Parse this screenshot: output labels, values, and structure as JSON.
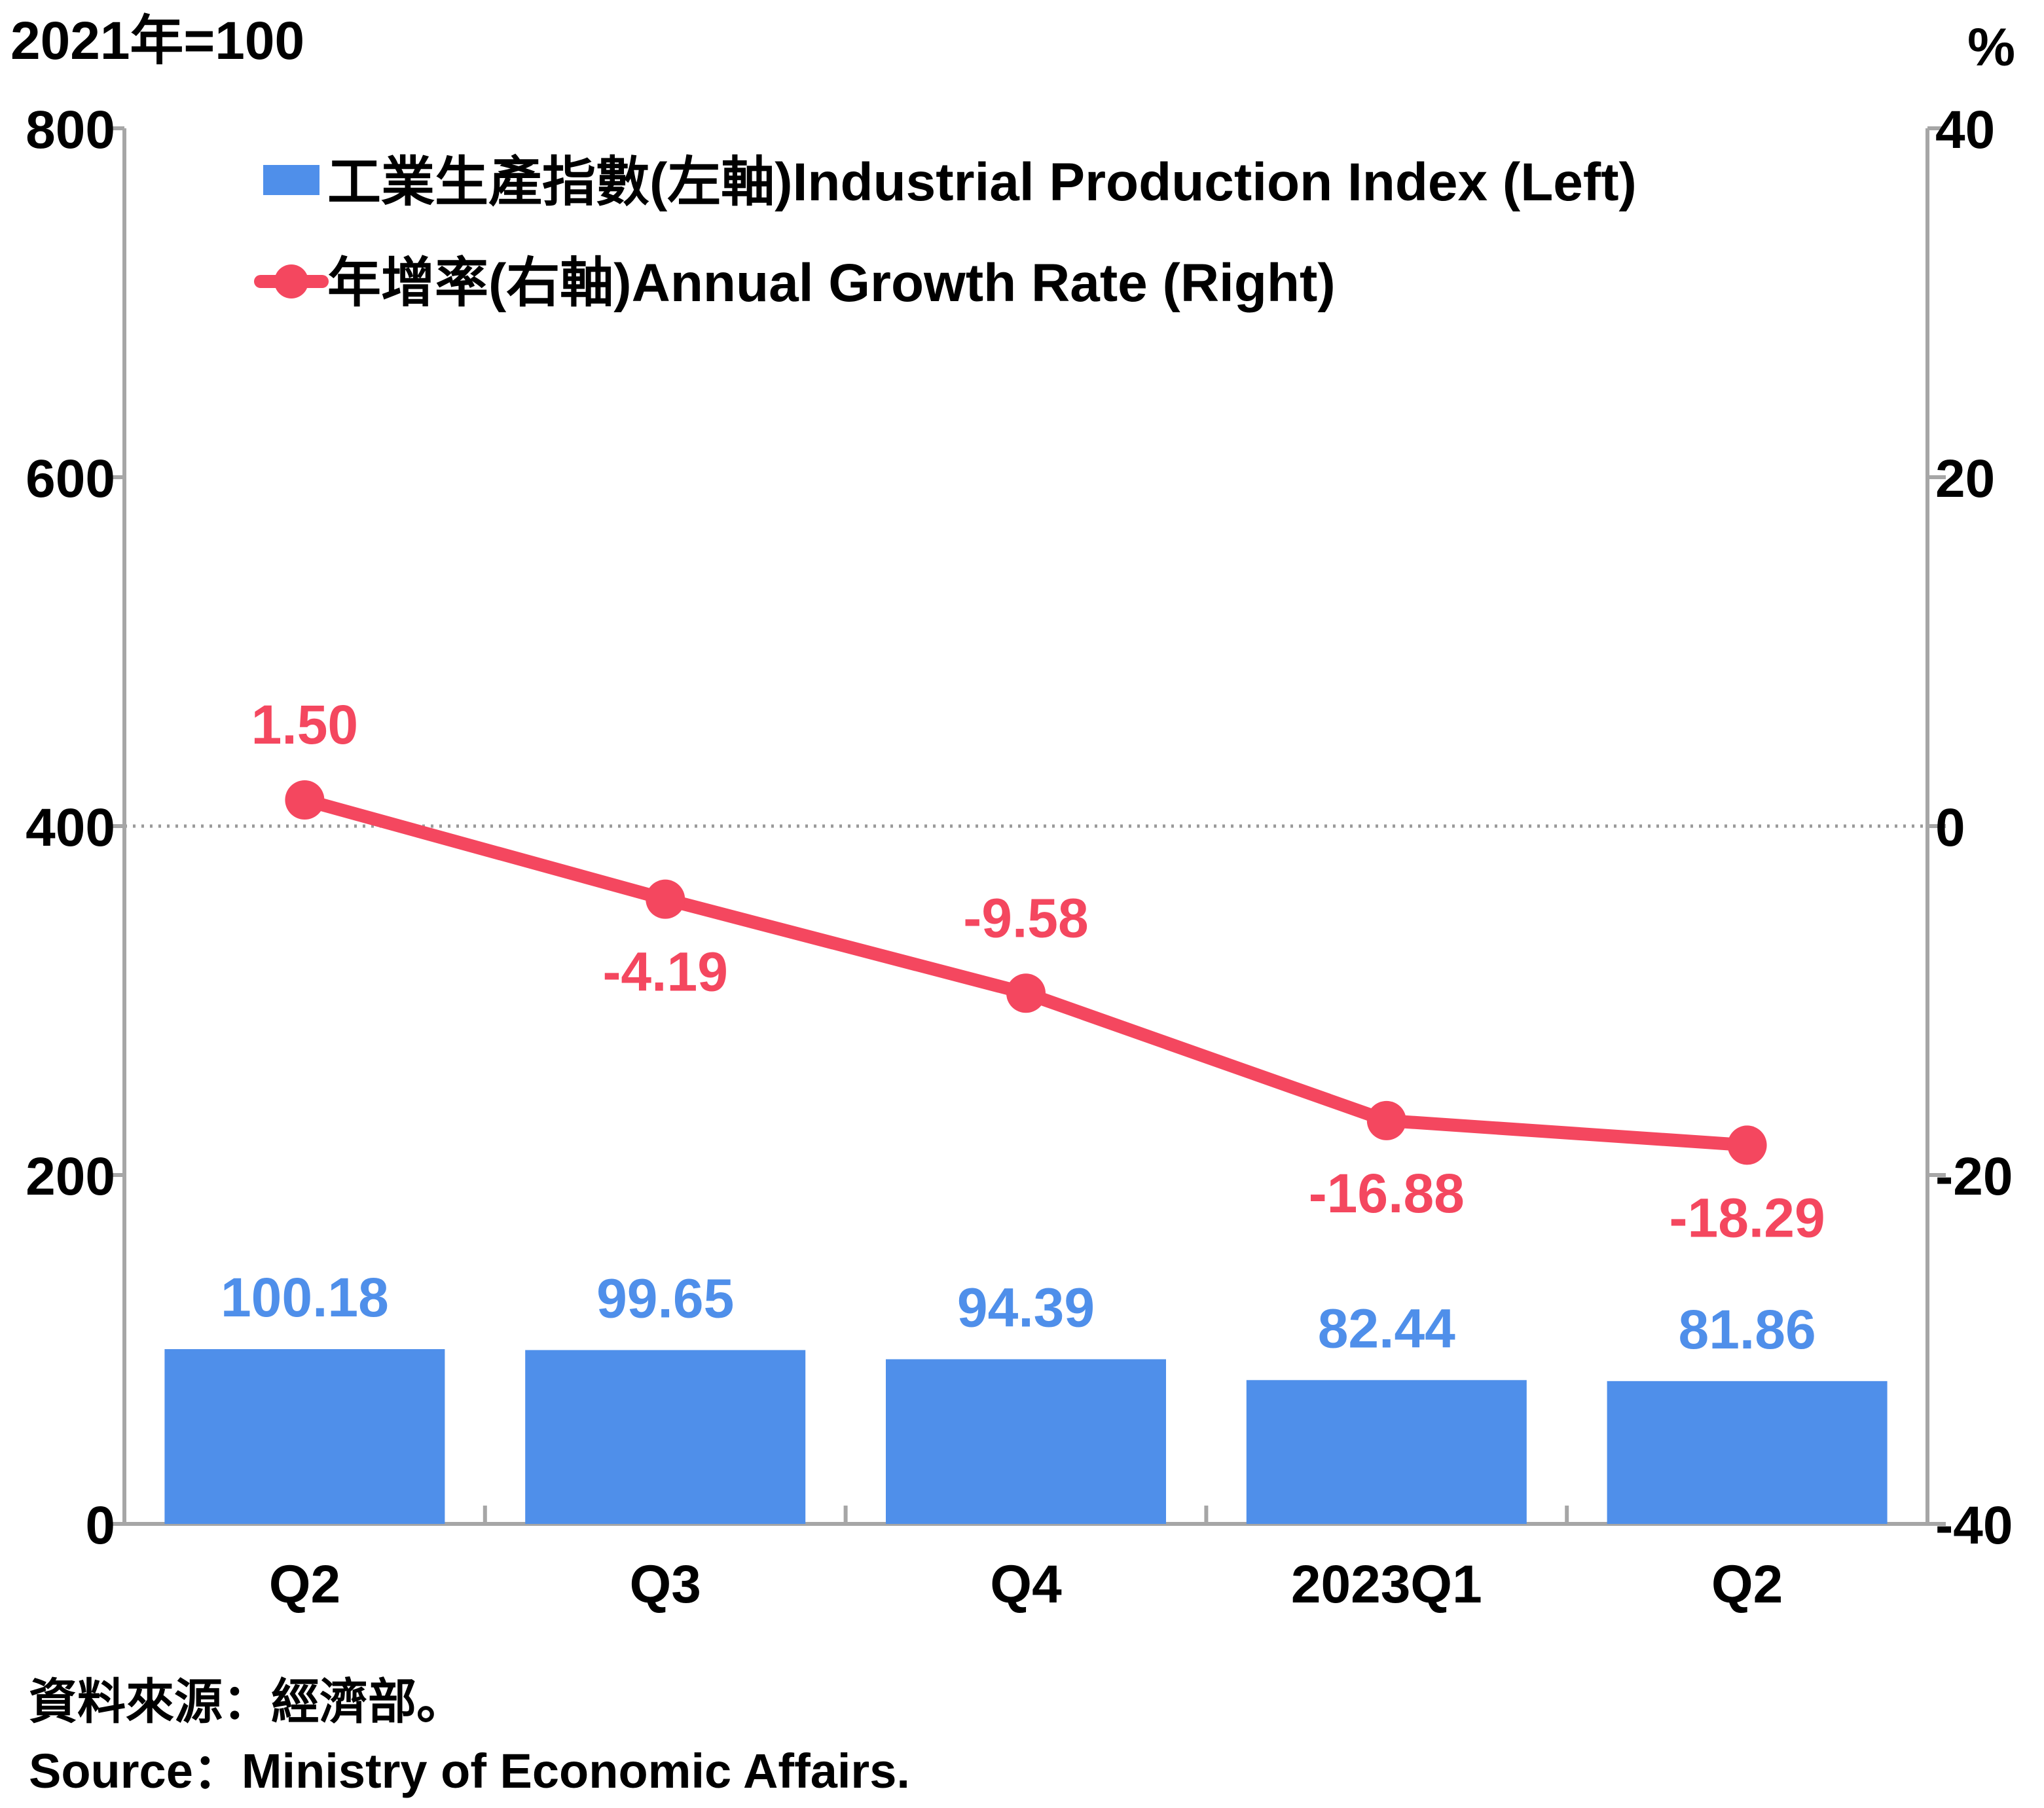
{
  "chart_data": {
    "type": "bar",
    "left_unit_label": "2021年=100",
    "right_unit_label": "%",
    "categories": [
      "Q2",
      "Q3",
      "Q4",
      "2023Q1",
      "Q2"
    ],
    "series": [
      {
        "name": "工業生產指數(左軸)Industrial Production Index (Left)",
        "type": "bar",
        "axis": "left",
        "values": [
          100.18,
          99.65,
          94.39,
          82.44,
          81.86
        ],
        "color": "#4f8fea"
      },
      {
        "name": "年增率(右軸)Annual Growth Rate (Right)",
        "type": "line",
        "axis": "right",
        "values": [
          1.5,
          -4.19,
          -9.58,
          -16.88,
          -18.29
        ],
        "color": "#f4475f"
      }
    ],
    "left_axis": {
      "ylim": [
        0,
        800
      ],
      "ticks": [
        0,
        200,
        400,
        600,
        800
      ]
    },
    "right_axis": {
      "ylim": [
        -40,
        40
      ],
      "ticks": [
        -40,
        -20,
        0,
        20,
        40
      ]
    },
    "value_labels": {
      "bars": [
        "100.18",
        "99.65",
        "94.39",
        "82.44",
        "81.86"
      ],
      "line": [
        "1.50",
        "-4.19",
        "-9.58",
        "-16.88",
        "-18.29"
      ]
    },
    "zero_reference_line": "dotted",
    "legend_position": "top-left",
    "grid": false
  },
  "source": {
    "zh": "資料來源：經濟部。",
    "en": "Source：Ministry of Economic Affairs."
  },
  "colors": {
    "bar": "#4f8fea",
    "line": "#f4475f",
    "axis": "#a6a6a6",
    "text": "#000000"
  }
}
